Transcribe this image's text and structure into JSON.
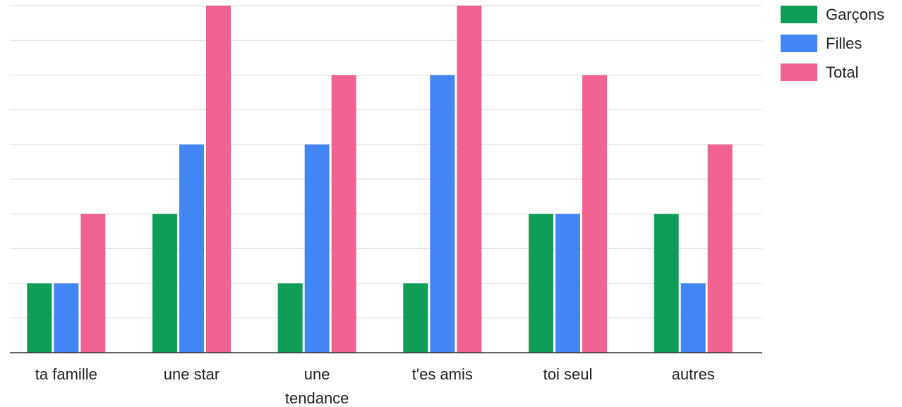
{
  "chart_data": {
    "type": "bar",
    "categories": [
      "ta famille",
      "une star",
      "une tendance",
      "t'es amis",
      "toi seul",
      "autres"
    ],
    "series": [
      {
        "name": "Garçons",
        "color": "#0f9d58",
        "values": [
          2,
          4,
          2,
          2,
          4,
          4
        ]
      },
      {
        "name": "Filles",
        "color": "#4285f4",
        "values": [
          2,
          6,
          6,
          8,
          4,
          2
        ]
      },
      {
        "name": "Total",
        "color": "#f06292",
        "values": [
          4,
          10,
          8,
          10,
          8,
          6
        ]
      }
    ],
    "ylim": [
      0,
      10
    ],
    "grid": true,
    "legend": "top-right",
    "title": "",
    "xlabel": "",
    "ylabel": ""
  }
}
